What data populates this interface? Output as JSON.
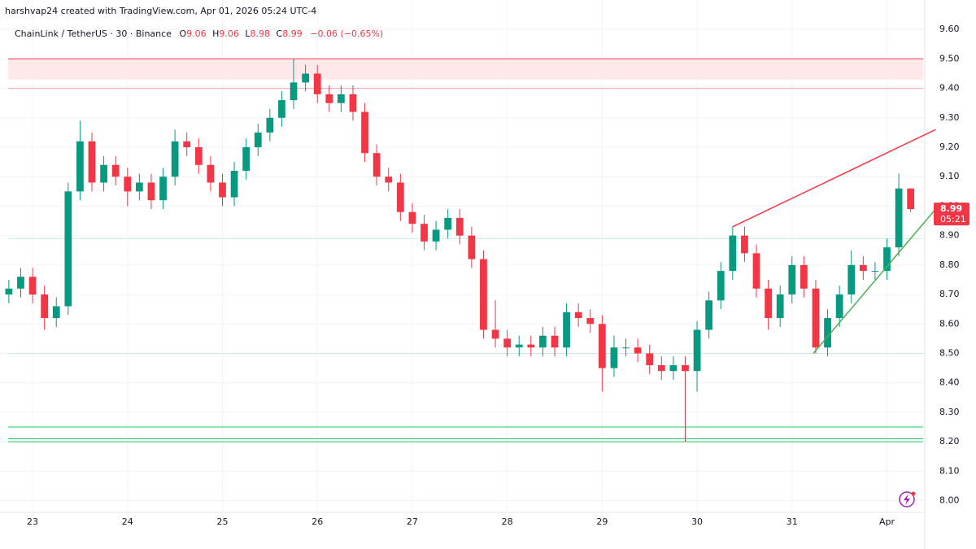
{
  "chart_data": {
    "type": "candlestick",
    "watermark": "harshvap24 created with TradingView.com, Apr 01, 2026 05:24 UTC-4",
    "legend": {
      "symbol": "ChainLink / TetherUS · 30 · Binance",
      "ohlc": [
        {
          "label": "O",
          "value": "9.06"
        },
        {
          "label": "H",
          "value": "9.06"
        },
        {
          "label": "L",
          "value": "8.98"
        },
        {
          "label": "C",
          "value": "8.99"
        }
      ],
      "change": "−0.06 (−0.65%)"
    },
    "last_price": {
      "value": 8.99,
      "label": "8.99",
      "countdown": "05:21"
    },
    "up_color": "#089981",
    "down_color": "#f23645",
    "open": [
      8.7,
      8.72,
      8.76,
      8.7,
      8.62,
      8.66,
      9.05,
      9.22,
      9.08,
      9.14,
      9.1,
      9.05,
      9.08,
      9.02,
      9.1,
      9.22,
      9.2,
      9.14,
      9.08,
      9.03,
      9.12,
      9.2,
      9.25,
      9.3,
      9.36,
      9.42,
      9.45,
      9.38,
      9.35,
      9.38,
      9.32,
      9.18,
      9.1,
      9.08,
      8.98,
      8.94,
      8.88,
      8.92,
      8.96,
      8.9,
      8.82,
      8.58,
      8.55,
      8.52,
      8.53,
      8.52,
      8.56,
      8.52,
      8.64,
      8.62,
      8.6,
      8.45,
      8.52,
      8.52,
      8.5,
      8.46,
      8.44,
      8.46,
      8.44,
      8.58,
      8.68,
      8.78,
      8.9,
      8.84,
      8.72,
      8.62,
      8.7,
      8.8,
      8.72,
      8.52,
      8.62,
      8.7,
      8.8,
      8.78,
      8.78,
      8.86,
      9.06
    ],
    "high": [
      8.75,
      8.79,
      8.79,
      8.73,
      8.69,
      9.08,
      9.29,
      9.25,
      9.17,
      9.17,
      9.13,
      9.11,
      9.11,
      9.13,
      9.26,
      9.25,
      9.23,
      9.17,
      9.11,
      9.15,
      9.23,
      9.28,
      9.33,
      9.39,
      9.5,
      9.48,
      9.48,
      9.41,
      9.41,
      9.41,
      9.35,
      9.21,
      9.13,
      9.11,
      9.01,
      8.97,
      8.95,
      8.99,
      8.99,
      8.93,
      8.85,
      8.68,
      8.58,
      8.56,
      8.56,
      8.59,
      8.59,
      8.67,
      8.67,
      8.65,
      8.63,
      8.56,
      8.55,
      8.55,
      8.53,
      8.49,
      8.49,
      8.49,
      8.61,
      8.71,
      8.81,
      8.93,
      8.93,
      8.87,
      8.75,
      8.73,
      8.83,
      8.83,
      8.75,
      8.65,
      8.73,
      8.85,
      8.83,
      8.81,
      8.89,
      9.11,
      9.06
    ],
    "low": [
      8.67,
      8.69,
      8.67,
      8.58,
      8.59,
      8.63,
      9.02,
      9.05,
      9.05,
      9.07,
      9.0,
      9.02,
      8.99,
      8.99,
      9.07,
      9.17,
      9.11,
      9.05,
      9.0,
      9.0,
      9.09,
      9.17,
      9.22,
      9.27,
      9.33,
      9.39,
      9.35,
      9.32,
      9.32,
      9.29,
      9.15,
      9.07,
      9.05,
      8.95,
      8.91,
      8.85,
      8.85,
      8.89,
      8.87,
      8.79,
      8.55,
      8.52,
      8.49,
      8.49,
      8.49,
      8.49,
      8.49,
      8.49,
      8.59,
      8.57,
      8.37,
      8.42,
      8.49,
      8.47,
      8.43,
      8.41,
      8.41,
      8.2,
      8.37,
      8.55,
      8.65,
      8.75,
      8.81,
      8.69,
      8.58,
      8.59,
      8.67,
      8.69,
      8.5,
      8.49,
      8.59,
      8.67,
      8.75,
      8.75,
      8.75,
      8.83,
      8.98
    ],
    "close": [
      8.72,
      8.76,
      8.7,
      8.62,
      8.66,
      9.05,
      9.22,
      9.08,
      9.14,
      9.1,
      9.05,
      9.08,
      9.02,
      9.1,
      9.22,
      9.2,
      9.14,
      9.08,
      9.03,
      9.12,
      9.2,
      9.25,
      9.3,
      9.36,
      9.42,
      9.45,
      9.38,
      9.35,
      9.38,
      9.32,
      9.18,
      9.1,
      9.08,
      8.98,
      8.94,
      8.88,
      8.92,
      8.96,
      8.9,
      8.82,
      8.58,
      8.55,
      8.52,
      8.53,
      8.52,
      8.56,
      8.52,
      8.64,
      8.62,
      8.6,
      8.45,
      8.52,
      8.52,
      8.5,
      8.46,
      8.44,
      8.46,
      8.44,
      8.58,
      8.68,
      8.78,
      8.9,
      8.84,
      8.72,
      8.62,
      8.7,
      8.8,
      8.72,
      8.52,
      8.62,
      8.7,
      8.8,
      8.78,
      8.78,
      8.86,
      9.06,
      8.99
    ],
    "xlim": [
      -0.06,
      77.05
    ],
    "xticks": [
      {
        "value": 2,
        "label": "23"
      },
      {
        "value": 10,
        "label": "24"
      },
      {
        "value": 18,
        "label": "25"
      },
      {
        "value": 26,
        "label": "26"
      },
      {
        "value": 34,
        "label": "27"
      },
      {
        "value": 42,
        "label": "28"
      },
      {
        "value": 50,
        "label": "29"
      },
      {
        "value": 58,
        "label": "30"
      },
      {
        "value": 66,
        "label": "31"
      },
      {
        "value": 74,
        "label": "Apr"
      }
    ],
    "ylim": [
      7.96,
      9.7
    ],
    "yticks": [
      {
        "value": 8.0,
        "label": "8.00"
      },
      {
        "value": 8.1,
        "label": "8.10"
      },
      {
        "value": 8.2,
        "label": "8.20"
      },
      {
        "value": 8.3,
        "label": "8.30"
      },
      {
        "value": 8.4,
        "label": "8.40"
      },
      {
        "value": 8.5,
        "label": "8.50"
      },
      {
        "value": 8.6,
        "label": "8.60"
      },
      {
        "value": 8.7,
        "label": "8.70"
      },
      {
        "value": 8.8,
        "label": "8.80"
      },
      {
        "value": 8.9,
        "label": "8.90"
      },
      {
        "value": 9.0,
        "label": "9.00"
      },
      {
        "value": 9.1,
        "label": "9.10"
      },
      {
        "value": 9.2,
        "label": "9.20"
      },
      {
        "value": 9.3,
        "label": "9.30"
      },
      {
        "value": 9.4,
        "label": "9.40"
      },
      {
        "value": 9.5,
        "label": "9.50"
      },
      {
        "value": 9.6,
        "label": "9.60"
      }
    ],
    "grid": true,
    "zones": [
      {
        "range": [
          9.43,
          9.5
        ],
        "color": "#fde8ea"
      }
    ],
    "levels": [
      {
        "value": 9.5,
        "color": "#f23645"
      },
      {
        "value": 9.4,
        "color": "#f7a1a9"
      },
      {
        "value": 8.89,
        "color": "#c8ecd9"
      },
      {
        "value": 8.5,
        "color": "#c8ecd9"
      },
      {
        "value": 8.25,
        "color": "#22c55e"
      },
      {
        "value": 8.21,
        "color": "#22c55e"
      },
      {
        "value": 8.2,
        "color": "#22c55e"
      }
    ],
    "trendlines": [
      {
        "x": [
          61,
          78.1
        ],
        "y": [
          8.93,
          9.26
        ],
        "color": "#f23645"
      },
      {
        "x": [
          67.8,
          78.1
        ],
        "y": [
          8.5,
          8.99
        ],
        "color": "#4caf50"
      }
    ]
  }
}
